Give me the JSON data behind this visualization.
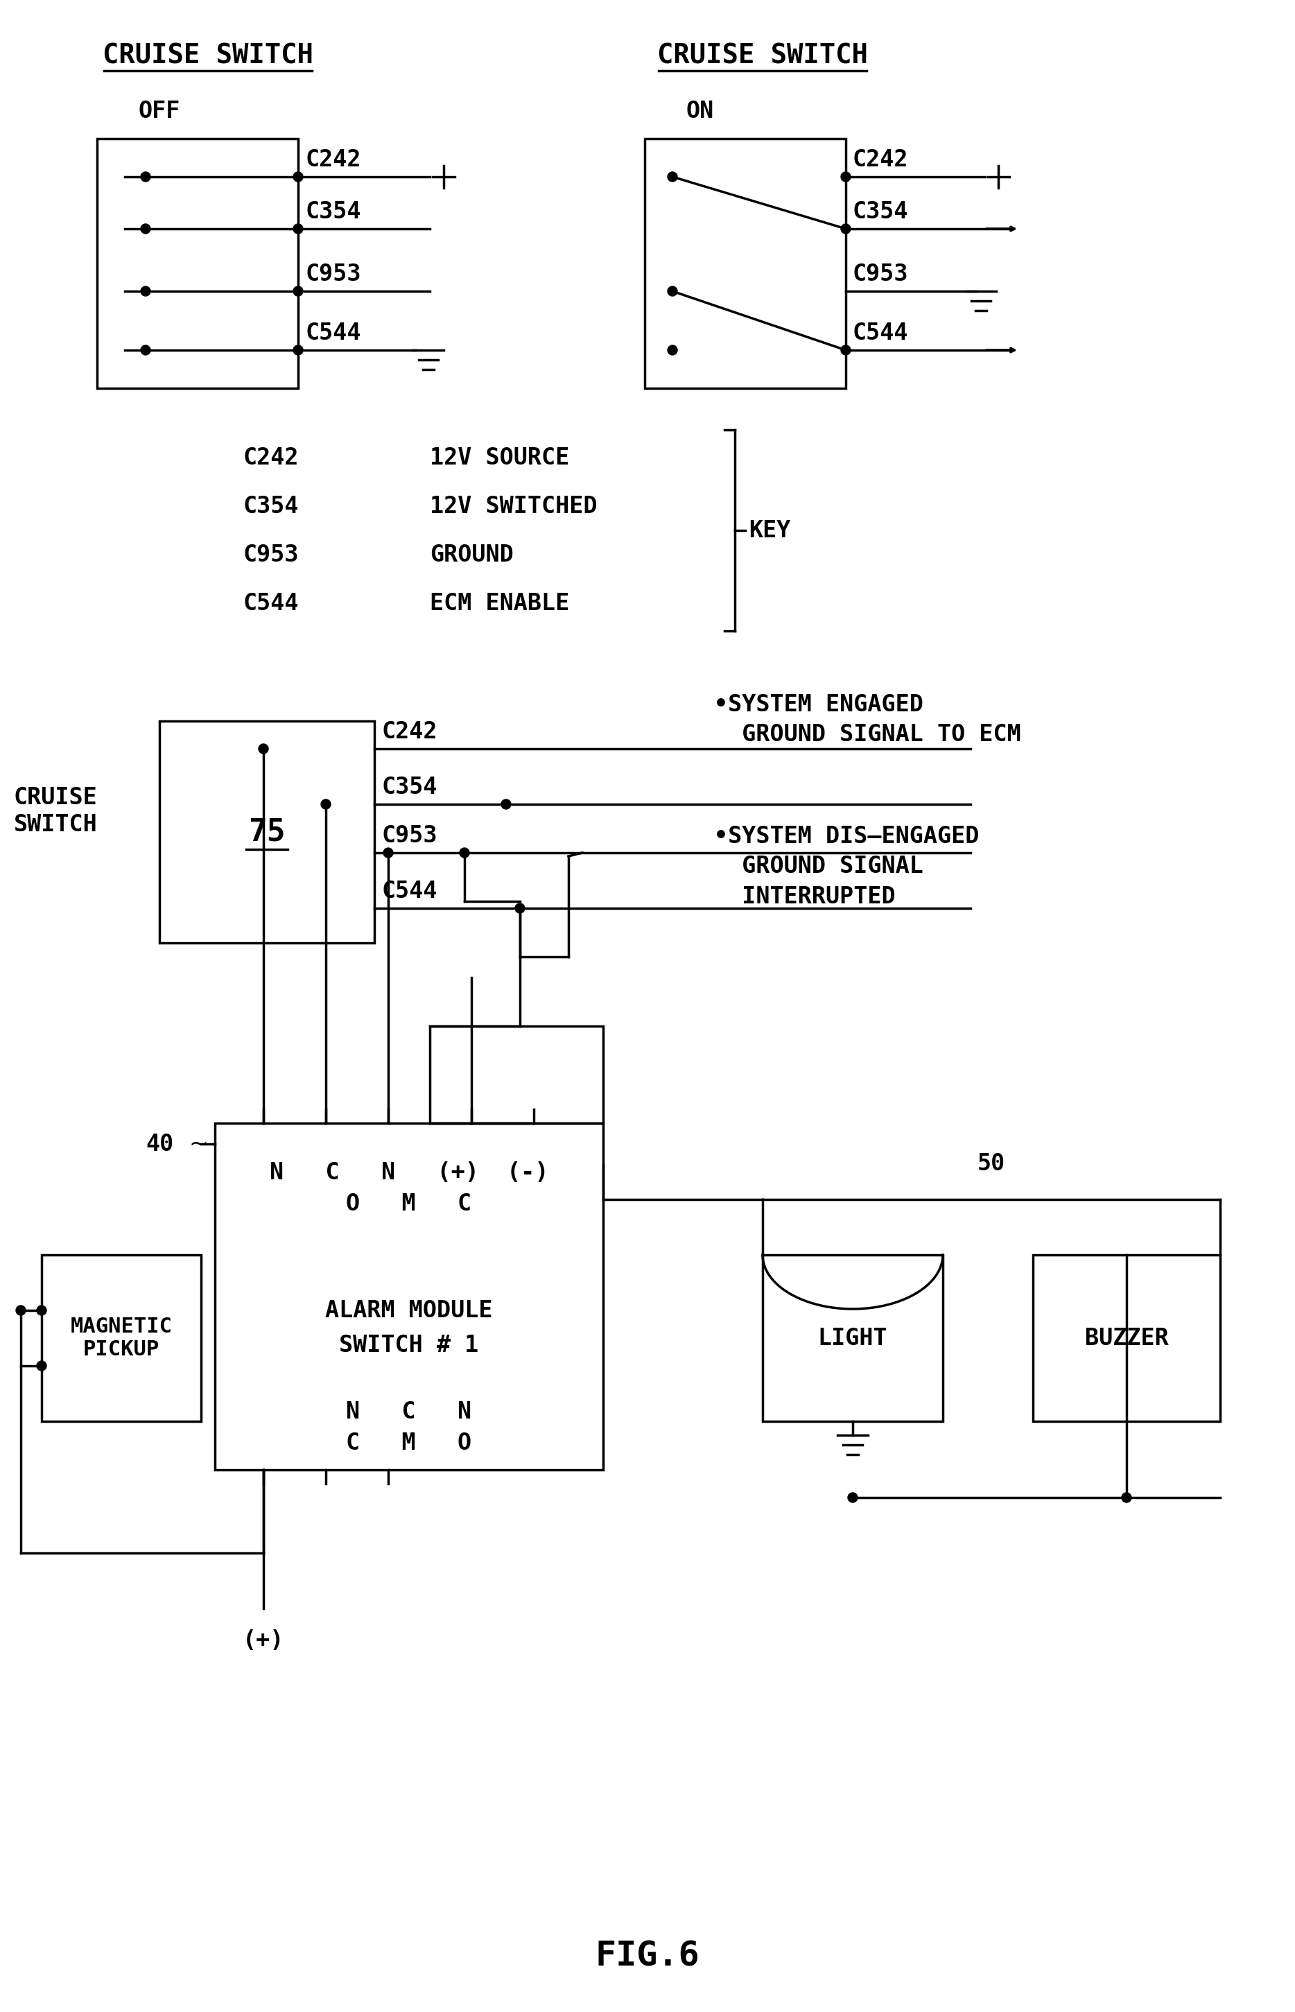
{
  "bg_color": "#ffffff",
  "title": "FIG.6",
  "cs_off_title": "CRUISE SWITCH",
  "cs_on_title": "CRUISE SWITCH",
  "off_label": "OFF",
  "on_label": "ON",
  "connectors": [
    "C242",
    "C354",
    "C953",
    "C544"
  ],
  "key_labels": [
    "C242",
    "C354",
    "C953",
    "C544"
  ],
  "key_values": [
    "12V SOURCE",
    "12V SWITCHED",
    "GROUND",
    "ECM ENABLE"
  ],
  "key_text": "KEY",
  "sys_engaged": "•SYSTEM ENGAGED\n  GROUND SIGNAL TO ECM",
  "sys_disengaged": "•SYSTEM DIS–ENGAGED\n  GROUND SIGNAL\n  INTERRUPTED",
  "cruise_switch_label": "CRUISE\nSWITCH",
  "alarm_label_line1": "ALARM MODULE",
  "alarm_label_line2": "SWITCH # 1",
  "magnetic_pickup": "MAGNETIC\nPICKUP",
  "light_label": "LIGHT",
  "buzzer_label": "BUZZER",
  "n75": "75",
  "n40": "40",
  "n50": "50",
  "plus": "+",
  "plus_paren": "(+)",
  "minus_paren": "(-)"
}
